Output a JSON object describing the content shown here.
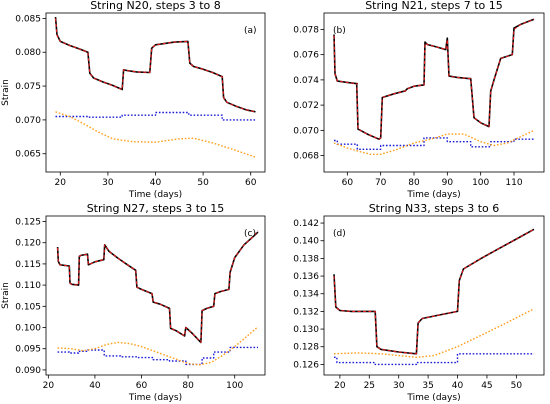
{
  "chart_data": [
    {
      "type": "line",
      "title": "String N20, steps 3 to 8",
      "panel_label": "(a)",
      "xlabel": "Time (days)",
      "ylabel": "Strain",
      "xlim": [
        17,
        63
      ],
      "ylim": [
        0.0623,
        0.0858
      ],
      "xticks": [
        20,
        30,
        40,
        50,
        60
      ],
      "xtick_labels": [
        "20",
        "30",
        "40",
        "50",
        "60"
      ],
      "yticks": [
        0.065,
        0.07,
        0.075,
        0.08,
        0.085
      ],
      "ytick_labels": [
        "0.065",
        "0.070",
        "0.075",
        "0.080",
        "0.085"
      ],
      "grid": false,
      "legend": "none",
      "series": [
        {
          "role": "measured",
          "color": "#000000",
          "style": "solid",
          "x": [
            19,
            19.3,
            20,
            22,
            24,
            25.8,
            26.2,
            27,
            29,
            31,
            33,
            33.3,
            34,
            36,
            38.8,
            39.2,
            40,
            42,
            44,
            46.8,
            47.2,
            48,
            50,
            52,
            54,
            54.3,
            55,
            57,
            59,
            61
          ],
          "y": [
            0.0852,
            0.0826,
            0.0816,
            0.081,
            0.0805,
            0.08,
            0.0769,
            0.0762,
            0.0756,
            0.0751,
            0.0745,
            0.0774,
            0.0773,
            0.0771,
            0.077,
            0.0806,
            0.0811,
            0.0813,
            0.0815,
            0.0816,
            0.0784,
            0.0779,
            0.0775,
            0.077,
            0.0764,
            0.0733,
            0.0726,
            0.072,
            0.0715,
            0.0712
          ]
        },
        {
          "role": "model",
          "color": "#e41a1c",
          "style": "dashed",
          "x": [
            19,
            19.3,
            20,
            22,
            24,
            25.8,
            26.2,
            27,
            29,
            31,
            33,
            33.3,
            34,
            36,
            38.8,
            39.2,
            40,
            42,
            44,
            46.8,
            47.2,
            48,
            50,
            52,
            54,
            54.3,
            55,
            57,
            59,
            61
          ],
          "y": [
            0.085,
            0.0825,
            0.0816,
            0.081,
            0.0805,
            0.08,
            0.0769,
            0.0762,
            0.0756,
            0.0751,
            0.0745,
            0.0774,
            0.0773,
            0.0771,
            0.077,
            0.0806,
            0.0811,
            0.0813,
            0.0815,
            0.0816,
            0.0784,
            0.0779,
            0.0775,
            0.077,
            0.0764,
            0.0733,
            0.0726,
            0.072,
            0.0715,
            0.0712
          ]
        },
        {
          "role": "component",
          "color": "#1a1ad6",
          "style": "dotted",
          "step": true,
          "x": [
            19,
            26,
            33,
            40,
            47,
            54,
            61
          ],
          "y": [
            0.0705,
            0.0704,
            0.0707,
            0.0711,
            0.0707,
            0.07,
            0.07
          ]
        },
        {
          "role": "component",
          "color": "#ff9f1c",
          "style": "dotted",
          "x": [
            19,
            22,
            25,
            28,
            31,
            35,
            40,
            45,
            48,
            52,
            56,
            61
          ],
          "y": [
            0.0712,
            0.0705,
            0.0694,
            0.0682,
            0.0672,
            0.0668,
            0.0667,
            0.0672,
            0.0673,
            0.0666,
            0.0657,
            0.0645
          ]
        }
      ]
    },
    {
      "type": "line",
      "title": "String N21, steps 7 to 15",
      "panel_label": "(b)",
      "xlabel": "Time (days)",
      "ylabel": "",
      "xlim": [
        53,
        119
      ],
      "ylim": [
        0.0667,
        0.0793
      ],
      "xticks": [
        60,
        70,
        80,
        90,
        100,
        110
      ],
      "xtick_labels": [
        "60",
        "70",
        "80",
        "90",
        "100",
        "110"
      ],
      "yticks": [
        0.068,
        0.07,
        0.072,
        0.074,
        0.076,
        0.078
      ],
      "ytick_labels": [
        "0.068",
        "0.070",
        "0.072",
        "0.074",
        "0.076",
        "0.078"
      ],
      "grid": false,
      "legend": "none",
      "series": [
        {
          "role": "measured",
          "color": "#000000",
          "style": "solid",
          "x": [
            56,
            56.3,
            57,
            60,
            63,
            62.8,
            63.2,
            66,
            69.5,
            70,
            70.5,
            74,
            77,
            77.3,
            78,
            80,
            83,
            83.3,
            84,
            87,
            89.5,
            90,
            90.5,
            93,
            96.5,
            97,
            98,
            100,
            102.5,
            103,
            104,
            106,
            109.5,
            110,
            112,
            116
          ],
          "y": [
            0.0776,
            0.0745,
            0.0739,
            0.0738,
            0.0737,
            0.0737,
            0.0701,
            0.0697,
            0.0693,
            0.0694,
            0.0726,
            0.0729,
            0.0731,
            0.0731,
            0.0733,
            0.0735,
            0.0736,
            0.077,
            0.0768,
            0.0766,
            0.0764,
            0.0773,
            0.0743,
            0.0742,
            0.0741,
            0.0741,
            0.071,
            0.0706,
            0.0703,
            0.0731,
            0.074,
            0.0757,
            0.076,
            0.0781,
            0.0784,
            0.0788
          ]
        },
        {
          "role": "model",
          "color": "#e41a1c",
          "style": "dashed",
          "x": [
            56,
            56.3,
            57,
            60,
            63,
            62.8,
            63.2,
            66,
            69.5,
            70,
            70.5,
            74,
            77,
            77.3,
            78,
            80,
            83,
            83.3,
            84,
            87,
            89.5,
            90,
            90.5,
            93,
            96.5,
            97,
            98,
            100,
            102.5,
            103,
            104,
            106,
            109.5,
            110,
            112,
            116
          ],
          "y": [
            0.0775,
            0.0745,
            0.0739,
            0.0738,
            0.0737,
            0.0737,
            0.0701,
            0.0697,
            0.0693,
            0.0694,
            0.0726,
            0.0729,
            0.0731,
            0.0731,
            0.0733,
            0.0735,
            0.0736,
            0.0769,
            0.0768,
            0.0766,
            0.0764,
            0.0772,
            0.0743,
            0.0742,
            0.0741,
            0.0741,
            0.071,
            0.0706,
            0.0703,
            0.0731,
            0.074,
            0.0757,
            0.076,
            0.078,
            0.0784,
            0.0788
          ]
        },
        {
          "role": "component",
          "color": "#1a1ad6",
          "style": "dotted",
          "step": true,
          "x": [
            56,
            57,
            63,
            70,
            77,
            83,
            90,
            97,
            103,
            110,
            116
          ],
          "y": [
            0.0692,
            0.0689,
            0.0685,
            0.0688,
            0.0688,
            0.0694,
            0.0691,
            0.0687,
            0.0691,
            0.0693,
            0.0693
          ]
        },
        {
          "role": "component",
          "color": "#ff9f1c",
          "style": "dotted",
          "x": [
            56,
            60,
            64,
            67,
            70,
            75,
            80,
            85,
            90,
            95,
            100,
            104,
            108,
            112,
            116
          ],
          "y": [
            0.069,
            0.0686,
            0.0683,
            0.0681,
            0.0681,
            0.0685,
            0.069,
            0.0693,
            0.0697,
            0.0697,
            0.0691,
            0.0688,
            0.069,
            0.0695,
            0.07
          ]
        }
      ]
    },
    {
      "type": "line",
      "title": "String N27, steps 3 to 15",
      "panel_label": "(c)",
      "xlabel": "Time (days)",
      "ylabel": "Strain",
      "xlim": [
        19,
        113
      ],
      "ylim": [
        0.0888,
        0.1263
      ],
      "xticks": [
        20,
        40,
        60,
        80,
        100
      ],
      "xtick_labels": [
        "20",
        "40",
        "60",
        "80",
        "100"
      ],
      "yticks": [
        0.09,
        0.095,
        0.1,
        0.105,
        0.11,
        0.115,
        0.12,
        0.125
      ],
      "ytick_labels": [
        "0.090",
        "0.095",
        "0.100",
        "0.105",
        "0.110",
        "0.115",
        "0.120",
        "0.125"
      ],
      "grid": false,
      "legend": "none",
      "series": [
        {
          "role": "measured",
          "color": "#000000",
          "style": "solid",
          "x": [
            24,
            24.3,
            25,
            29,
            29.3,
            30,
            33,
            33.3,
            34,
            36.8,
            37.2,
            40,
            43.8,
            44.2,
            46,
            50,
            54,
            57.5,
            58,
            60,
            64.5,
            65,
            68,
            72,
            72.5,
            75,
            78.5,
            79,
            82,
            85.5,
            86,
            88,
            91,
            91.5,
            94,
            97.5,
            98,
            100,
            104,
            108,
            110
          ],
          "y": [
            0.119,
            0.1156,
            0.1148,
            0.1145,
            0.1105,
            0.1102,
            0.11,
            0.1168,
            0.117,
            0.1173,
            0.1148,
            0.1155,
            0.116,
            0.1195,
            0.118,
            0.1163,
            0.1148,
            0.1135,
            0.1095,
            0.109,
            0.108,
            0.106,
            0.1055,
            0.1045,
            0.0998,
            0.0992,
            0.098,
            0.1,
            0.0985,
            0.0965,
            0.104,
            0.1045,
            0.105,
            0.108,
            0.1085,
            0.109,
            0.113,
            0.1165,
            0.1195,
            0.1215,
            0.1225
          ]
        },
        {
          "role": "model",
          "color": "#e41a1c",
          "style": "dashed",
          "x": [
            24,
            24.3,
            25,
            29,
            29.3,
            30,
            33,
            33.3,
            34,
            36.8,
            37.2,
            40,
            43.8,
            44.2,
            46,
            50,
            54,
            57.5,
            58,
            60,
            64.5,
            65,
            68,
            72,
            72.5,
            75,
            78.5,
            79,
            82,
            85.5,
            86,
            88,
            91,
            91.5,
            94,
            97.5,
            98,
            100,
            104,
            108,
            110
          ],
          "y": [
            0.1188,
            0.1156,
            0.1148,
            0.1145,
            0.1105,
            0.1102,
            0.11,
            0.1168,
            0.117,
            0.1173,
            0.1148,
            0.1155,
            0.116,
            0.1195,
            0.118,
            0.1163,
            0.1148,
            0.1135,
            0.1095,
            0.109,
            0.108,
            0.106,
            0.1055,
            0.1045,
            0.0998,
            0.0992,
            0.098,
            0.1,
            0.0985,
            0.0965,
            0.104,
            0.1045,
            0.105,
            0.108,
            0.1085,
            0.109,
            0.113,
            0.1165,
            0.1195,
            0.1215,
            0.1228
          ]
        },
        {
          "role": "component",
          "color": "#1a1ad6",
          "style": "dotted",
          "step": true,
          "x": [
            24,
            29,
            33,
            37,
            44,
            51,
            58,
            65,
            72,
            79,
            86,
            91,
            98,
            110
          ],
          "y": [
            0.0942,
            0.094,
            0.0944,
            0.0947,
            0.0933,
            0.0931,
            0.0929,
            0.0924,
            0.0921,
            0.0913,
            0.0928,
            0.0942,
            0.0953,
            0.0953
          ]
        },
        {
          "role": "component",
          "color": "#ff9f1c",
          "style": "dotted",
          "x": [
            24,
            30,
            35,
            40,
            45,
            50,
            55,
            60,
            65,
            70,
            75,
            80,
            85,
            90,
            95,
            100,
            105,
            110
          ],
          "y": [
            0.0952,
            0.095,
            0.0945,
            0.095,
            0.096,
            0.0965,
            0.0962,
            0.0955,
            0.0945,
            0.0935,
            0.0925,
            0.0915,
            0.0912,
            0.0918,
            0.0935,
            0.0955,
            0.0978,
            0.1002
          ]
        }
      ]
    },
    {
      "type": "line",
      "title": "String N33, steps 3 to 6",
      "panel_label": "(d)",
      "xlabel": "Time (days)",
      "ylabel": "",
      "xlim": [
        17.3,
        54.7
      ],
      "ylim": [
        0.1248,
        0.1428
      ],
      "xticks": [
        20,
        25,
        30,
        35,
        40,
        45,
        50
      ],
      "xtick_labels": [
        "20",
        "25",
        "30",
        "35",
        "40",
        "45",
        "50"
      ],
      "yticks": [
        0.126,
        0.128,
        0.13,
        0.132,
        0.134,
        0.136,
        0.138,
        0.14,
        0.142
      ],
      "ytick_labels": [
        "0.126",
        "0.128",
        "0.130",
        "0.132",
        "0.134",
        "0.136",
        "0.138",
        "0.140",
        "0.142"
      ],
      "grid": false,
      "legend": "none",
      "series": [
        {
          "role": "measured",
          "color": "#000000",
          "style": "solid",
          "x": [
            19,
            19.3,
            20,
            22,
            24,
            26,
            26.3,
            27,
            30,
            33,
            33.3,
            34,
            37,
            40,
            40.3,
            41,
            44,
            47,
            50,
            53
          ],
          "y": [
            0.1362,
            0.1325,
            0.1321,
            0.132,
            0.132,
            0.132,
            0.128,
            0.1277,
            0.1274,
            0.1272,
            0.1307,
            0.1312,
            0.1316,
            0.132,
            0.1355,
            0.1368,
            0.138,
            0.1391,
            0.1402,
            0.1413
          ]
        },
        {
          "role": "model",
          "color": "#e41a1c",
          "style": "dashed",
          "x": [
            19,
            19.3,
            20,
            22,
            24,
            26,
            26.3,
            27,
            30,
            33,
            33.3,
            34,
            37,
            40,
            40.3,
            41,
            44,
            47,
            50,
            53
          ],
          "y": [
            0.136,
            0.1325,
            0.1321,
            0.132,
            0.132,
            0.132,
            0.128,
            0.1277,
            0.1274,
            0.1272,
            0.1307,
            0.1312,
            0.1316,
            0.132,
            0.1355,
            0.1368,
            0.138,
            0.1391,
            0.1402,
            0.1413
          ]
        },
        {
          "role": "component",
          "color": "#1a1ad6",
          "style": "dotted",
          "step": true,
          "x": [
            19,
            19.5,
            26,
            33,
            40,
            53
          ],
          "y": [
            0.1268,
            0.1262,
            0.126,
            0.1262,
            0.1272,
            0.1272
          ]
        },
        {
          "role": "component",
          "color": "#ff9f1c",
          "style": "dotted",
          "x": [
            19,
            23,
            27,
            30,
            33,
            36,
            40,
            44,
            48,
            53
          ],
          "y": [
            0.1272,
            0.1273,
            0.1272,
            0.127,
            0.1268,
            0.127,
            0.128,
            0.1293,
            0.1306,
            0.1323
          ]
        }
      ]
    }
  ]
}
